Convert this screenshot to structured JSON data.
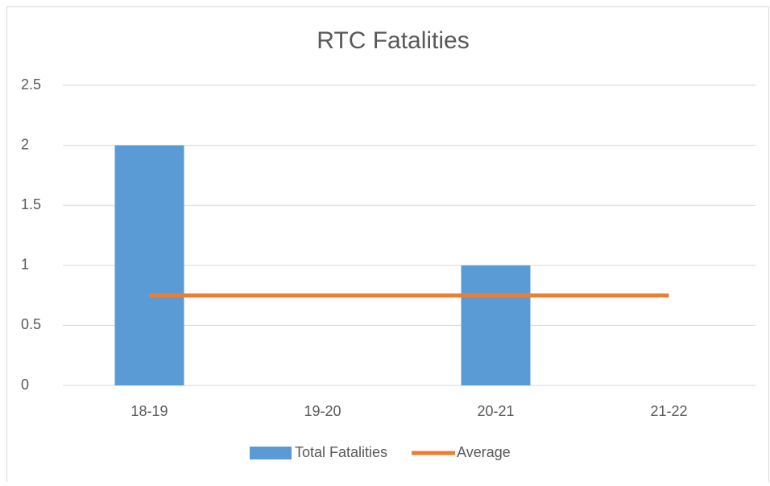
{
  "chart_data": {
    "type": "bar",
    "title": "RTC Fatalities",
    "categories": [
      "18-19",
      "19-20",
      "20-21",
      "21-22"
    ],
    "series": [
      {
        "name": "Total Fatalities",
        "type": "bar",
        "color": "#5b9bd5",
        "values": [
          2,
          0,
          1,
          0
        ]
      },
      {
        "name": "Average",
        "type": "line",
        "color": "#ed7d31",
        "values": [
          0.75,
          0.75,
          0.75,
          0.75
        ]
      }
    ],
    "ylim": [
      0,
      2.5
    ],
    "yticks": [
      0,
      0.5,
      1,
      1.5,
      2,
      2.5
    ],
    "grid": true,
    "legend": "bottom"
  }
}
